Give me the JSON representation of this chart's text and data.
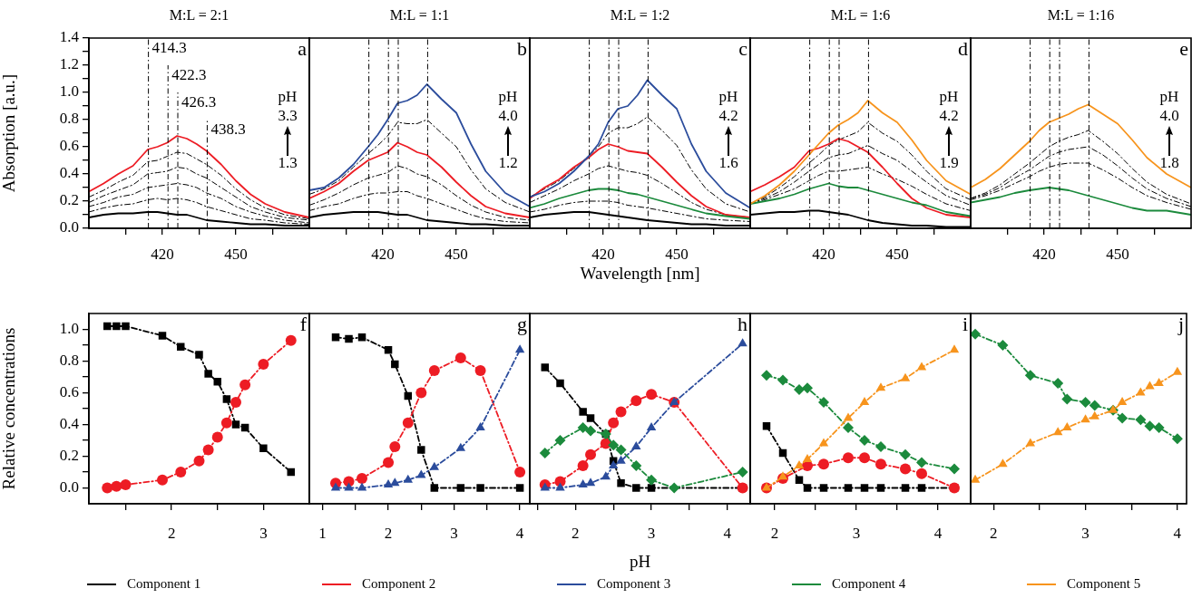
{
  "chart_data": [
    {
      "type": "line",
      "title": "M:L = 2:1",
      "ylabel": "Absorption [a.u.]",
      "x": [
        390,
        396,
        402,
        408,
        414,
        418,
        422,
        426,
        430,
        434,
        438,
        444,
        450,
        456,
        462,
        470,
        480
      ],
      "xlim": [
        390,
        480
      ],
      "xticks": [
        {
          "value": 405,
          "label": null
        },
        420,
        {
          "value": 435,
          "label": null
        },
        450,
        {
          "value": 465,
          "label": null
        }
      ],
      "ylim": [
        0,
        1.4
      ],
      "yticks": [
        {
          "value": 0,
          "label": "0.0"
        },
        {
          "value": 0.1,
          "label": null
        },
        0.2,
        {
          "value": 0.3,
          "label": null
        },
        0.4,
        {
          "value": 0.5,
          "label": null
        },
        0.6,
        {
          "value": 0.7,
          "label": null
        },
        0.8,
        {
          "value": 0.9,
          "label": null
        },
        {
          "value": 1,
          "label": "1.0"
        },
        {
          "value": 1.1,
          "label": null
        },
        1.2,
        {
          "value": 1.3,
          "label": null
        },
        1.4
      ],
      "marker": "none",
      "legend": "bottom",
      "annotations": [
        "a",
        "pH",
        "3.3",
        "1.3"
      ],
      "ref_lines": [
        {
          "axis": "x",
          "value": 414.3,
          "label": "414.3",
          "line_style": "dashed"
        },
        {
          "axis": "x",
          "value": 422.3,
          "label": "422.3",
          "line_style": "dashed"
        },
        {
          "axis": "x",
          "value": 426.3,
          "label": "426.3",
          "line_style": "dashed"
        },
        {
          "axis": "x",
          "value": 438.3,
          "label": "438.3",
          "line_style": "dashed"
        }
      ],
      "series": [
        {
          "color": "#000000",
          "line_style": "dashed",
          "values": [
            0.12,
            0.15,
            0.17,
            0.18,
            0.21,
            0.22,
            0.21,
            0.22,
            0.21,
            0.19,
            0.16,
            0.13,
            0.1,
            0.07,
            0.06,
            0.04,
            0.03
          ]
        },
        {
          "color": "#000000",
          "line_style": "dashed",
          "values": [
            0.16,
            0.19,
            0.23,
            0.25,
            0.3,
            0.31,
            0.32,
            0.33,
            0.32,
            0.3,
            0.26,
            0.22,
            0.16,
            0.12,
            0.09,
            0.06,
            0.04
          ]
        },
        {
          "color": "#000000",
          "line_style": "dashed",
          "values": [
            0.19,
            0.24,
            0.28,
            0.32,
            0.4,
            0.41,
            0.42,
            0.45,
            0.44,
            0.4,
            0.37,
            0.3,
            0.23,
            0.16,
            0.12,
            0.08,
            0.06
          ]
        },
        {
          "color": "#000000",
          "line_style": "dashed",
          "values": [
            0.23,
            0.28,
            0.34,
            0.39,
            0.49,
            0.5,
            0.53,
            0.56,
            0.55,
            0.51,
            0.47,
            0.39,
            0.29,
            0.21,
            0.15,
            0.1,
            0.07
          ]
        },
        {
          "name": "Component 1",
          "color": "#000000",
          "values": [
            0.08,
            0.1,
            0.11,
            0.11,
            0.12,
            0.12,
            0.11,
            0.1,
            0.1,
            0.08,
            0.06,
            0.05,
            0.04,
            0.03,
            0.03,
            0.02,
            0.02
          ]
        },
        {
          "name": "Component 2",
          "color": "#ed1c24",
          "values": [
            0.27,
            0.33,
            0.4,
            0.46,
            0.58,
            0.6,
            0.63,
            0.68,
            0.66,
            0.62,
            0.57,
            0.47,
            0.35,
            0.25,
            0.18,
            0.12,
            0.08
          ]
        }
      ]
    },
    {
      "type": "line",
      "title": "M:L = 1:1",
      "x": [
        390,
        396,
        402,
        408,
        414,
        418,
        422,
        426,
        430,
        434,
        438,
        444,
        450,
        456,
        462,
        470,
        480
      ],
      "xlim": [
        390,
        480
      ],
      "xticks": [
        {
          "value": 405,
          "label": null
        },
        420,
        {
          "value": 435,
          "label": null
        },
        450,
        {
          "value": 465,
          "label": null
        }
      ],
      "ylim": [
        0,
        1.4
      ],
      "tick_labels": "x",
      "marker": "none",
      "legend": "bottom",
      "annotations": [
        "b",
        "pH",
        "4.0",
        "1.2"
      ],
      "ref_lines": [
        {
          "axis": "x",
          "value": 414.3,
          "line_style": "dashed"
        },
        {
          "axis": "x",
          "value": 422.3,
          "line_style": "dashed"
        },
        {
          "axis": "x",
          "value": 426.3,
          "line_style": "dashed"
        },
        {
          "axis": "x",
          "value": 438.3,
          "line_style": "dashed"
        }
      ],
      "series": [
        {
          "color": "#000000",
          "line_style": "dashed",
          "values": [
            0.13,
            0.16,
            0.18,
            0.22,
            0.25,
            0.26,
            0.26,
            0.27,
            0.27,
            0.24,
            0.22,
            0.18,
            0.14,
            0.1,
            0.07,
            0.05,
            0.04
          ]
        },
        {
          "color": "#000000",
          "line_style": "dashed",
          "values": [
            0.17,
            0.21,
            0.26,
            0.32,
            0.37,
            0.39,
            0.41,
            0.46,
            0.44,
            0.4,
            0.38,
            0.32,
            0.24,
            0.17,
            0.12,
            0.08,
            0.06
          ]
        },
        {
          "color": "#000000",
          "line_style": "dashed",
          "values": [
            0.25,
            0.29,
            0.35,
            0.45,
            0.55,
            0.61,
            0.68,
            0.78,
            0.77,
            0.77,
            0.8,
            0.7,
            0.6,
            0.43,
            0.29,
            0.19,
            0.12
          ]
        },
        {
          "name": "Component 1",
          "color": "#000000",
          "values": [
            0.08,
            0.1,
            0.11,
            0.12,
            0.12,
            0.12,
            0.11,
            0.1,
            0.1,
            0.08,
            0.06,
            0.05,
            0.04,
            0.03,
            0.03,
            0.02,
            0.02
          ]
        },
        {
          "name": "Component 2",
          "color": "#ed1c24",
          "values": [
            0.22,
            0.27,
            0.33,
            0.42,
            0.5,
            0.53,
            0.56,
            0.63,
            0.6,
            0.56,
            0.54,
            0.45,
            0.34,
            0.24,
            0.16,
            0.11,
            0.08
          ]
        },
        {
          "name": "Component 3",
          "color": "#2b4c9c",
          "values": [
            0.28,
            0.3,
            0.37,
            0.47,
            0.6,
            0.69,
            0.8,
            0.92,
            0.94,
            0.98,
            1.06,
            0.95,
            0.85,
            0.62,
            0.42,
            0.26,
            0.16
          ]
        }
      ]
    },
    {
      "type": "line",
      "title": "M:L = 1:2",
      "xlabel": "Wavelength [nm]",
      "x": [
        390,
        396,
        402,
        408,
        414,
        418,
        422,
        426,
        430,
        434,
        438,
        444,
        450,
        456,
        462,
        470,
        480
      ],
      "xlim": [
        390,
        480
      ],
      "xticks": [
        {
          "value": 405,
          "label": null
        },
        420,
        {
          "value": 435,
          "label": null
        },
        450,
        {
          "value": 465,
          "label": null
        }
      ],
      "ylim": [
        0,
        1.4
      ],
      "tick_labels": "x",
      "marker": "none",
      "legend": "bottom",
      "annotations": [
        "c",
        "pH",
        "4.2",
        "1.6"
      ],
      "ref_lines": [
        {
          "axis": "x",
          "value": 414.3,
          "line_style": "dashed"
        },
        {
          "axis": "x",
          "value": 422.3,
          "line_style": "dashed"
        },
        {
          "axis": "x",
          "value": 426.3,
          "line_style": "dashed"
        },
        {
          "axis": "x",
          "value": 438.3,
          "line_style": "dashed"
        }
      ],
      "series": [
        {
          "color": "#000000",
          "line_style": "dashed",
          "values": [
            0.12,
            0.14,
            0.17,
            0.19,
            0.2,
            0.2,
            0.2,
            0.19,
            0.17,
            0.16,
            0.15,
            0.13,
            0.11,
            0.09,
            0.07,
            0.06,
            0.05
          ]
        },
        {
          "color": "#000000",
          "line_style": "dashed",
          "values": [
            0.19,
            0.24,
            0.29,
            0.35,
            0.4,
            0.44,
            0.46,
            0.44,
            0.42,
            0.41,
            0.39,
            0.33,
            0.26,
            0.19,
            0.14,
            0.1,
            0.08
          ]
        },
        {
          "color": "#000000",
          "line_style": "dashed",
          "values": [
            0.23,
            0.29,
            0.35,
            0.44,
            0.53,
            0.6,
            0.7,
            0.74,
            0.74,
            0.77,
            0.82,
            0.72,
            0.61,
            0.43,
            0.29,
            0.18,
            0.12
          ]
        },
        {
          "name": "Component 1",
          "color": "#000000",
          "values": [
            0.08,
            0.1,
            0.11,
            0.12,
            0.12,
            0.11,
            0.1,
            0.09,
            0.08,
            0.07,
            0.06,
            0.05,
            0.04,
            0.03,
            0.03,
            0.02,
            0.02
          ]
        },
        {
          "name": "Component 2",
          "color": "#ed1c24",
          "values": [
            0.22,
            0.3,
            0.36,
            0.45,
            0.52,
            0.58,
            0.62,
            0.6,
            0.57,
            0.56,
            0.55,
            0.45,
            0.34,
            0.24,
            0.16,
            0.1,
            0.08
          ]
        },
        {
          "name": "Component 3",
          "color": "#2b4c9c",
          "values": [
            0.23,
            0.27,
            0.33,
            0.42,
            0.53,
            0.62,
            0.78,
            0.88,
            0.9,
            0.98,
            1.09,
            0.98,
            0.88,
            0.62,
            0.42,
            0.26,
            0.15
          ]
        },
        {
          "name": "Component 4",
          "color": "#1b8a3c",
          "values": [
            0.15,
            0.18,
            0.22,
            0.25,
            0.28,
            0.29,
            0.29,
            0.28,
            0.26,
            0.25,
            0.23,
            0.2,
            0.17,
            0.14,
            0.11,
            0.09,
            0.07
          ]
        }
      ]
    },
    {
      "type": "line",
      "title": "M:L = 1:6",
      "x": [
        390,
        396,
        402,
        408,
        414,
        418,
        422,
        426,
        430,
        434,
        438,
        444,
        450,
        456,
        462,
        470,
        480
      ],
      "xlim": [
        390,
        480
      ],
      "xticks": [
        {
          "value": 405,
          "label": null
        },
        420,
        {
          "value": 435,
          "label": null
        },
        450,
        {
          "value": 465,
          "label": null
        }
      ],
      "ylim": [
        0,
        1.4
      ],
      "tick_labels": "x",
      "marker": "none",
      "legend": "bottom",
      "annotations": [
        "d",
        "pH",
        "4.2",
        "1.9"
      ],
      "ref_lines": [
        {
          "axis": "x",
          "value": 414.3,
          "line_style": "dashed"
        },
        {
          "axis": "x",
          "value": 422.3,
          "line_style": "dashed"
        },
        {
          "axis": "x",
          "value": 426.3,
          "line_style": "dashed"
        },
        {
          "axis": "x",
          "value": 438.3,
          "line_style": "dashed"
        }
      ],
      "series": [
        {
          "color": "#000000",
          "line_style": "dashed",
          "values": [
            0.18,
            0.21,
            0.25,
            0.29,
            0.35,
            0.39,
            0.42,
            0.42,
            0.43,
            0.44,
            0.45,
            0.4,
            0.36,
            0.31,
            0.25,
            0.18,
            0.13
          ]
        },
        {
          "color": "#000000",
          "line_style": "dashed",
          "values": [
            0.18,
            0.22,
            0.27,
            0.34,
            0.42,
            0.47,
            0.52,
            0.54,
            0.55,
            0.58,
            0.61,
            0.55,
            0.5,
            0.42,
            0.34,
            0.24,
            0.17
          ]
        },
        {
          "color": "#000000",
          "line_style": "dashed",
          "values": [
            0.18,
            0.23,
            0.3,
            0.38,
            0.48,
            0.54,
            0.61,
            0.65,
            0.68,
            0.71,
            0.78,
            0.7,
            0.64,
            0.54,
            0.42,
            0.29,
            0.21
          ]
        },
        {
          "name": "Component 1",
          "color": "#000000",
          "values": [
            0.1,
            0.11,
            0.12,
            0.12,
            0.13,
            0.13,
            0.12,
            0.11,
            0.1,
            0.08,
            0.06,
            0.04,
            0.03,
            0.02,
            0.02,
            0.01,
            0.01
          ]
        },
        {
          "name": "Component 2",
          "color": "#ed1c24",
          "values": [
            0.27,
            0.32,
            0.38,
            0.45,
            0.57,
            0.59,
            0.62,
            0.66,
            0.64,
            0.6,
            0.56,
            0.45,
            0.33,
            0.22,
            0.15,
            0.1,
            0.08
          ]
        },
        {
          "name": "Component 4",
          "color": "#1b8a3c",
          "values": [
            0.18,
            0.2,
            0.22,
            0.25,
            0.29,
            0.31,
            0.33,
            0.31,
            0.3,
            0.3,
            0.28,
            0.25,
            0.22,
            0.19,
            0.17,
            0.12,
            0.09
          ]
        },
        {
          "name": "Component 5",
          "color": "#f7941d",
          "values": [
            0.18,
            0.24,
            0.32,
            0.42,
            0.54,
            0.62,
            0.7,
            0.76,
            0.8,
            0.85,
            0.94,
            0.85,
            0.78,
            0.65,
            0.5,
            0.35,
            0.25
          ]
        }
      ]
    },
    {
      "type": "line",
      "title": "M:L = 1:16",
      "x": [
        390,
        396,
        402,
        408,
        414,
        418,
        422,
        426,
        430,
        434,
        438,
        444,
        450,
        456,
        462,
        470,
        480
      ],
      "xlim": [
        390,
        480
      ],
      "xticks": [
        {
          "value": 405,
          "label": null
        },
        420,
        {
          "value": 435,
          "label": null
        },
        450,
        {
          "value": 465,
          "label": null
        }
      ],
      "ylim": [
        0,
        1.4
      ],
      "tick_labels": "x",
      "marker": "none",
      "legend": "bottom",
      "annotations": [
        "e",
        "pH",
        "4.0",
        "1.8"
      ],
      "ref_lines": [
        {
          "axis": "x",
          "value": 414.3,
          "line_style": "dashed"
        },
        {
          "axis": "x",
          "value": 422.3,
          "line_style": "dashed"
        },
        {
          "axis": "x",
          "value": 426.3,
          "line_style": "dashed"
        },
        {
          "axis": "x",
          "value": 438.3,
          "line_style": "dashed"
        }
      ],
      "series": [
        {
          "color": "#000000",
          "line_style": "dashed",
          "values": [
            0.21,
            0.24,
            0.28,
            0.33,
            0.38,
            0.42,
            0.45,
            0.47,
            0.48,
            0.48,
            0.48,
            0.43,
            0.37,
            0.3,
            0.24,
            0.19,
            0.14
          ]
        },
        {
          "color": "#000000",
          "line_style": "dashed",
          "values": [
            0.22,
            0.25,
            0.3,
            0.37,
            0.43,
            0.48,
            0.53,
            0.56,
            0.58,
            0.59,
            0.6,
            0.54,
            0.46,
            0.37,
            0.29,
            0.22,
            0.16
          ]
        },
        {
          "color": "#000000",
          "line_style": "dashed",
          "values": [
            0.22,
            0.26,
            0.32,
            0.4,
            0.48,
            0.54,
            0.6,
            0.64,
            0.67,
            0.69,
            0.72,
            0.64,
            0.55,
            0.44,
            0.34,
            0.25,
            0.18
          ]
        },
        {
          "name": "Component 4",
          "color": "#1b8a3c",
          "values": [
            0.19,
            0.21,
            0.23,
            0.26,
            0.28,
            0.29,
            0.3,
            0.29,
            0.28,
            0.26,
            0.24,
            0.21,
            0.18,
            0.15,
            0.13,
            0.13,
            0.1
          ]
        },
        {
          "name": "Component 5",
          "color": "#f7941d",
          "values": [
            0.3,
            0.36,
            0.44,
            0.54,
            0.64,
            0.72,
            0.78,
            0.81,
            0.84,
            0.88,
            0.91,
            0.84,
            0.77,
            0.65,
            0.52,
            0.4,
            0.3
          ]
        }
      ]
    },
    {
      "type": "line",
      "ylabel": "Relative concentrations",
      "xlim": [
        1.1,
        3.5
      ],
      "xticks": [
        {
          "value": 1.5,
          "label": null
        },
        2,
        {
          "value": 2.5,
          "label": null
        },
        3
      ],
      "ylim": [
        -0.1,
        1.1
      ],
      "yticks": [
        {
          "value": 0,
          "label": "0.0"
        },
        {
          "value": 0.1,
          "label": null
        },
        0.2,
        {
          "value": 0.3,
          "label": null
        },
        0.4,
        {
          "value": 0.5,
          "label": null
        },
        0.6,
        {
          "value": 0.7,
          "label": null
        },
        0.8,
        {
          "value": 0.9,
          "label": null
        },
        {
          "value": 1,
          "label": "1.0"
        }
      ],
      "line_style": "dashed",
      "legend": "bottom",
      "annotations": [
        "f"
      ],
      "series": [
        {
          "name": "Component 1",
          "color": "#000000",
          "marker": "square",
          "x": [
            1.3,
            1.4,
            1.5,
            1.9,
            2.1,
            2.3,
            2.4,
            2.5,
            2.6,
            2.7,
            2.8,
            3.0,
            3.3
          ],
          "values": [
            1.02,
            1.02,
            1.02,
            0.96,
            0.89,
            0.84,
            0.72,
            0.67,
            0.56,
            0.4,
            0.38,
            0.25,
            0.1
          ]
        },
        {
          "name": "Component 2",
          "color": "#ed1c24",
          "marker": "circle",
          "x": [
            1.3,
            1.4,
            1.5,
            1.9,
            2.1,
            2.3,
            2.4,
            2.5,
            2.6,
            2.7,
            2.8,
            3.0,
            3.3
          ],
          "values": [
            0,
            0.01,
            0.02,
            0.05,
            0.1,
            0.17,
            0.24,
            0.32,
            0.41,
            0.54,
            0.65,
            0.78,
            0.93
          ]
        }
      ]
    },
    {
      "type": "line",
      "xlim": [
        0.8,
        4.15
      ],
      "xticks": [
        1,
        {
          "value": 1.5,
          "label": null
        },
        2,
        {
          "value": 2.5,
          "label": null
        },
        3,
        {
          "value": 3.5,
          "label": null
        },
        4
      ],
      "ylim": [
        -0.1,
        1.1
      ],
      "tick_labels": "x",
      "line_style": "dashed",
      "legend": "bottom",
      "annotations": [
        "g"
      ],
      "series": [
        {
          "name": "Component 1",
          "color": "#000000",
          "marker": "square",
          "x": [
            1.2,
            1.4,
            1.6,
            2.0,
            2.1,
            2.3,
            2.5,
            2.7,
            3.1,
            3.4,
            4.0
          ],
          "values": [
            0.95,
            0.94,
            0.95,
            0.87,
            0.78,
            0.58,
            0.24,
            0,
            0,
            0,
            0
          ]
        },
        {
          "name": "Component 2",
          "color": "#ed1c24",
          "marker": "circle",
          "x": [
            1.2,
            1.4,
            1.6,
            2.0,
            2.1,
            2.3,
            2.5,
            2.7,
            3.1,
            3.4,
            4.0
          ],
          "values": [
            0.03,
            0.04,
            0.06,
            0.16,
            0.26,
            0.41,
            0.6,
            0.74,
            0.82,
            0.74,
            0.1
          ]
        },
        {
          "name": "Component 3",
          "color": "#2b4c9c",
          "marker": "triangle",
          "x": [
            1.2,
            1.4,
            1.6,
            2.0,
            2.1,
            2.3,
            2.5,
            2.7,
            3.1,
            3.4,
            4.0
          ],
          "values": [
            0,
            0,
            0,
            0.02,
            0.03,
            0.05,
            0.08,
            0.13,
            0.25,
            0.38,
            0.87
          ]
        }
      ]
    },
    {
      "type": "line",
      "xlabel": "pH",
      "xlim": [
        1.4,
        4.3
      ],
      "xticks": [
        {
          "value": 1.5,
          "label": null
        },
        2,
        {
          "value": 2.5,
          "label": null
        },
        3,
        {
          "value": 3.5,
          "label": null
        },
        4
      ],
      "ylim": [
        -0.1,
        1.1
      ],
      "tick_labels": "x",
      "line_style": "dashed",
      "legend": "bottom",
      "annotations": [
        "h"
      ],
      "series": [
        {
          "name": "Component 1",
          "color": "#000000",
          "marker": "square",
          "x": [
            1.6,
            1.8,
            2.1,
            2.2,
            2.4,
            2.5,
            2.6,
            2.8,
            3.0,
            4.2
          ],
          "values": [
            0.76,
            0.66,
            0.48,
            0.44,
            0.34,
            0.17,
            0.03,
            0,
            0,
            0
          ]
        },
        {
          "name": "Component 2",
          "color": "#ed1c24",
          "marker": "circle",
          "x": [
            1.6,
            1.8,
            2.1,
            2.2,
            2.4,
            2.5,
            2.6,
            2.8,
            3.0,
            3.3,
            4.2
          ],
          "values": [
            0.02,
            0.04,
            0.14,
            0.21,
            0.28,
            0.41,
            0.48,
            0.55,
            0.59,
            0.54,
            0
          ]
        },
        {
          "name": "Component 3",
          "color": "#2b4c9c",
          "marker": "triangle",
          "x": [
            1.6,
            1.8,
            2.1,
            2.2,
            2.4,
            2.5,
            2.6,
            2.8,
            3.0,
            3.3,
            4.2
          ],
          "values": [
            0,
            0,
            0.02,
            0.03,
            0.07,
            0.14,
            0.17,
            0.26,
            0.38,
            0.54,
            0.91
          ]
        },
        {
          "name": "Component 4",
          "color": "#1b8a3c",
          "marker": "diamond",
          "x": [
            1.6,
            1.8,
            2.1,
            2.2,
            2.4,
            2.5,
            2.6,
            2.8,
            3.0,
            3.3,
            4.2
          ],
          "values": [
            0.22,
            0.3,
            0.38,
            0.36,
            0.34,
            0.27,
            0.24,
            0.14,
            0.05,
            0,
            0.1
          ]
        }
      ]
    },
    {
      "type": "line",
      "xlim": [
        1.7,
        4.4
      ],
      "xticks": [
        2,
        {
          "value": 2.5,
          "label": null
        },
        3,
        {
          "value": 3.5,
          "label": null
        },
        4
      ],
      "ylim": [
        -0.1,
        1.1
      ],
      "tick_labels": "x",
      "line_style": "dashed",
      "legend": "bottom",
      "annotations": [
        "i"
      ],
      "series": [
        {
          "name": "Component 1",
          "color": "#000000",
          "marker": "square",
          "x": [
            1.9,
            2.1,
            2.3,
            2.4,
            2.6,
            2.9,
            3.1,
            3.3,
            3.6,
            3.8,
            4.2
          ],
          "values": [
            0.39,
            0.22,
            0.05,
            0,
            0,
            0,
            0,
            0,
            0,
            0,
            0
          ]
        },
        {
          "name": "Component 2",
          "color": "#ed1c24",
          "marker": "circle",
          "x": [
            1.9,
            2.1,
            2.4,
            2.6,
            2.9,
            3.1,
            3.3,
            3.6,
            3.8,
            4.2
          ],
          "values": [
            0,
            0.06,
            0.14,
            0.15,
            0.19,
            0.19,
            0.15,
            0.12,
            0.09,
            0
          ]
        },
        {
          "name": "Component 4",
          "color": "#1b8a3c",
          "marker": "diamond",
          "x": [
            1.9,
            2.1,
            2.3,
            2.4,
            2.6,
            2.9,
            3.1,
            3.3,
            3.6,
            3.8,
            4.2
          ],
          "values": [
            0.71,
            0.68,
            0.62,
            0.63,
            0.54,
            0.38,
            0.3,
            0.26,
            0.21,
            0.16,
            0.12
          ]
        },
        {
          "name": "Component 5",
          "color": "#f7941d",
          "marker": "triangle",
          "x": [
            1.9,
            2.1,
            2.3,
            2.4,
            2.6,
            2.9,
            3.1,
            3.3,
            3.6,
            3.8,
            4.2
          ],
          "values": [
            0,
            0.07,
            0.14,
            0.18,
            0.28,
            0.44,
            0.54,
            0.63,
            0.69,
            0.76,
            0.87
          ]
        }
      ]
    },
    {
      "type": "line",
      "xlim": [
        1.75,
        4.1
      ],
      "xticks": [
        2,
        {
          "value": 2.5,
          "label": null
        },
        3,
        {
          "value": 3.5,
          "label": null
        },
        4
      ],
      "ylim": [
        -0.1,
        1.1
      ],
      "tick_labels": "x",
      "line_style": "dashed",
      "legend": "bottom",
      "annotations": [
        "j"
      ],
      "series": [
        {
          "name": "Component 4",
          "color": "#1b8a3c",
          "marker": "diamond",
          "x": [
            1.8,
            2.1,
            2.4,
            2.7,
            2.8,
            3.0,
            3.1,
            3.3,
            3.4,
            3.6,
            3.7,
            3.8,
            4.0
          ],
          "values": [
            0.97,
            0.9,
            0.71,
            0.66,
            0.56,
            0.54,
            0.52,
            0.49,
            0.44,
            0.43,
            0.39,
            0.38,
            0.31
          ]
        },
        {
          "name": "Component 5",
          "color": "#f7941d",
          "marker": "triangle",
          "x": [
            1.8,
            2.1,
            2.4,
            2.7,
            2.8,
            3.0,
            3.1,
            3.3,
            3.4,
            3.6,
            3.7,
            3.8,
            4.0
          ],
          "values": [
            0.05,
            0.15,
            0.28,
            0.35,
            0.38,
            0.43,
            0.45,
            0.49,
            0.54,
            0.6,
            0.64,
            0.66,
            0.73
          ]
        }
      ]
    }
  ]
}
